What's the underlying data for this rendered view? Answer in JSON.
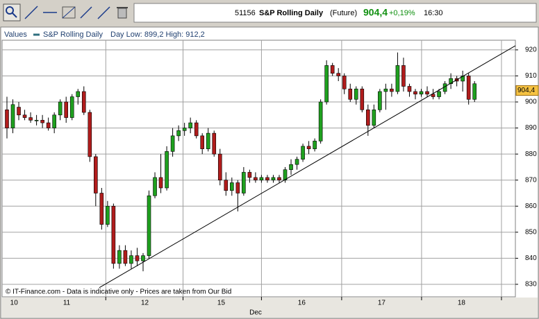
{
  "toolbar": {
    "code": "51156",
    "name": "S&P Rolling Daily",
    "kind": "(Future)",
    "change": "+0,19%",
    "time": "16:30"
  },
  "chart_data": {
    "type": "candlestick",
    "header": {
      "label": "Values",
      "series_name": "S&P Rolling Daily",
      "range_text": "Day Low: 899,2  High: 912,2"
    },
    "footer": "© IT-Finance.com - Data is indicative only - Prices are taken from Our Bid",
    "x_axis_label": "Dec",
    "up_color": "#1fa01f",
    "down_color": "#b01c1c",
    "open": [
      897,
      890,
      898,
      895,
      894,
      893,
      893,
      892,
      890,
      895,
      900,
      894,
      902,
      904,
      896,
      879,
      865,
      853,
      860,
      838,
      843,
      838,
      841,
      839,
      841,
      864,
      871,
      867,
      881,
      887,
      889,
      890,
      892,
      887,
      882,
      888,
      880,
      870,
      866,
      869,
      865,
      873,
      871,
      870,
      871,
      870,
      871,
      870,
      874,
      876,
      878,
      883,
      882,
      885,
      900,
      914,
      911,
      910,
      905,
      901,
      905,
      897,
      891,
      897,
      904,
      905,
      904,
      914,
      906,
      904,
      903,
      904,
      903,
      902,
      904,
      907,
      909,
      908,
      910,
      901
    ],
    "high": [
      902,
      901,
      900,
      897,
      896,
      895,
      895,
      894,
      896,
      901,
      902,
      903,
      905,
      906,
      897,
      880,
      867,
      862,
      861,
      845,
      845,
      843,
      844,
      842,
      866,
      873,
      880,
      883,
      890,
      891,
      892,
      894,
      893,
      888,
      890,
      889,
      882,
      873,
      871,
      870,
      875,
      874,
      873,
      872,
      872,
      872,
      872,
      875,
      878,
      879,
      884,
      885,
      886,
      901,
      916,
      915,
      913,
      911,
      907,
      906,
      906,
      899,
      899,
      905,
      907,
      907,
      919,
      917,
      907,
      905,
      905,
      906,
      905,
      905,
      908,
      911,
      910,
      912,
      911,
      908
    ],
    "low": [
      886,
      888,
      893,
      893,
      892,
      891,
      890,
      889,
      888,
      893,
      892,
      893,
      899,
      895,
      877,
      860,
      851,
      852,
      836,
      836,
      837,
      836,
      837,
      835,
      840,
      863,
      865,
      866,
      879,
      885,
      887,
      888,
      886,
      880,
      881,
      879,
      868,
      864,
      864,
      858,
      864,
      869,
      869,
      869,
      869,
      869,
      869,
      869,
      872,
      874,
      877,
      880,
      881,
      884,
      899,
      910,
      908,
      903,
      900,
      899,
      896,
      887,
      890,
      896,
      897,
      902,
      903,
      904,
      902,
      901,
      902,
      902,
      901,
      901,
      903,
      905,
      906,
      904,
      899,
      900
    ],
    "close": [
      890,
      899,
      895,
      894,
      893,
      893,
      892,
      890,
      895,
      900,
      894,
      902,
      904,
      896,
      879,
      865,
      853,
      860,
      838,
      843,
      838,
      841,
      839,
      841,
      864,
      871,
      867,
      881,
      887,
      889,
      890,
      892,
      887,
      882,
      888,
      880,
      870,
      866,
      869,
      865,
      873,
      871,
      870,
      871,
      870,
      871,
      870,
      874,
      876,
      878,
      883,
      882,
      885,
      900,
      914,
      911,
      910,
      905,
      901,
      905,
      897,
      891,
      897,
      904,
      905,
      904,
      914,
      906,
      904,
      903,
      904,
      903,
      902,
      904,
      907,
      909,
      908,
      910,
      901,
      907
    ],
    "xlim": [
      -0.82,
      85.9
    ],
    "xticks": [
      {
        "value": 1.2,
        "label": "10"
      },
      {
        "value": 10.1,
        "label": "11"
      },
      {
        "value": 23.3,
        "label": "12"
      },
      {
        "value": 36.2,
        "label": "15"
      },
      {
        "value": 49.8,
        "label": "16"
      },
      {
        "value": 63.3,
        "label": "17"
      },
      {
        "value": 76.8,
        "label": "18"
      }
    ],
    "ylim": [
      825.2,
      923.7
    ],
    "yticks": [
      830,
      840,
      850,
      860,
      870,
      880,
      890,
      900,
      910,
      920
    ],
    "grid": true,
    "last_price": {
      "value": 904.4,
      "label": "904,4"
    },
    "trendline": {
      "x": [
        15.6,
        85.9
      ],
      "y": [
        828.7,
        921.6
      ]
    }
  }
}
